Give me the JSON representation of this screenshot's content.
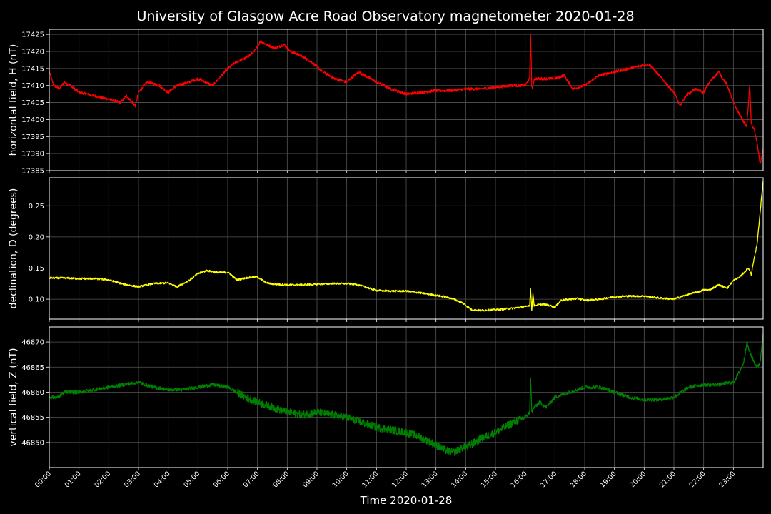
{
  "chart_data": {
    "type": "line",
    "title": "University of Glasgow Acre Road Observatory magnetometer 2020-01-28",
    "xlabel": "Time 2020-01-28",
    "x_ticks": [
      "00:00",
      "01:00",
      "02:00",
      "03:00",
      "04:00",
      "05:00",
      "06:00",
      "07:00",
      "08:00",
      "09:00",
      "10:00",
      "11:00",
      "12:00",
      "13:00",
      "14:00",
      "15:00",
      "16:00",
      "17:00",
      "18:00",
      "19:00",
      "20:00",
      "21:00",
      "22:00",
      "23:00"
    ],
    "xlim_hours": [
      0,
      24
    ],
    "grid": true,
    "background": "#000000",
    "panels": [
      {
        "name": "horizontal",
        "ylabel": "horizontal field, H (nT)",
        "color": "#ff0000",
        "ylim": [
          17385,
          17426.5
        ],
        "yticks": [
          17385,
          17390,
          17395,
          17400,
          17405,
          17410,
          17415,
          17420,
          17425
        ],
        "ytick_labels": [
          "17385",
          "17390",
          "17395",
          "17400",
          "17405",
          "17410",
          "17415",
          "17420",
          "17425"
        ],
        "noise": 0.4,
        "x": [
          0,
          0.15,
          0.35,
          0.5,
          0.7,
          1.0,
          1.5,
          2.0,
          2.4,
          2.6,
          2.9,
          3.0,
          3.3,
          3.7,
          4.0,
          4.3,
          4.7,
          5.0,
          5.5,
          6.0,
          6.3,
          6.6,
          6.9,
          7.1,
          7.3,
          7.6,
          7.9,
          8.1,
          8.4,
          8.8,
          9.2,
          9.6,
          10.0,
          10.4,
          10.6,
          11.0,
          11.5,
          12.0,
          12.5,
          13.0,
          13.5,
          14.0,
          14.5,
          15.0,
          15.5,
          16.0,
          16.15,
          16.18,
          16.22,
          16.25,
          16.3,
          16.5,
          17.0,
          17.3,
          17.6,
          18.0,
          18.5,
          19.0,
          19.5,
          20.0,
          20.2,
          20.6,
          20.9,
          21.0,
          21.2,
          21.4,
          21.7,
          22.0,
          22.2,
          22.5,
          22.8,
          23.0,
          23.3,
          23.45,
          23.55,
          23.6,
          23.7,
          23.8,
          23.9,
          24.0
        ],
        "values": [
          17414,
          17410,
          17409,
          17411,
          17410,
          17408,
          17407,
          17406,
          17405,
          17407,
          17404,
          17408,
          17411,
          17410,
          17408,
          17410,
          17411,
          17412,
          17410,
          17415,
          17417,
          17418,
          17420,
          17423,
          17422,
          17421,
          17422,
          17420,
          17419,
          17417,
          17414,
          17412,
          17411,
          17414,
          17413,
          17411,
          17409,
          17407.5,
          17408,
          17408.5,
          17408.5,
          17409,
          17409,
          17409.5,
          17410,
          17410,
          17412,
          17425,
          17410,
          17409,
          17412,
          17412,
          17412,
          17413,
          17409,
          17410,
          17413,
          17414,
          17415,
          17416,
          17416,
          17412,
          17409,
          17408,
          17404,
          17407,
          17409,
          17408,
          17411,
          17414,
          17410,
          17405,
          17400,
          17398,
          17410,
          17399,
          17397,
          17393,
          17387,
          17391
        ]
      },
      {
        "name": "declination",
        "ylabel": "declination, D (degrees)",
        "color": "#ffff00",
        "ylim": [
          0.068,
          0.295
        ],
        "yticks": [
          0.1,
          0.15,
          0.2,
          0.25
        ],
        "ytick_labels": [
          "0.10",
          "0.15",
          "0.20",
          "0.25"
        ],
        "noise": 0.0015,
        "x": [
          0,
          0.5,
          1.0,
          1.5,
          2.0,
          2.5,
          3.0,
          3.5,
          4.0,
          4.3,
          4.7,
          5.0,
          5.3,
          5.6,
          6.0,
          6.1,
          6.3,
          6.6,
          7.0,
          7.3,
          7.6,
          8.0,
          8.5,
          9.0,
          9.5,
          10.0,
          10.3,
          10.6,
          11.0,
          11.5,
          12.0,
          12.5,
          13.0,
          13.3,
          13.6,
          13.9,
          14.2,
          14.5,
          15.0,
          15.5,
          16.0,
          16.15,
          16.18,
          16.22,
          16.26,
          16.3,
          16.6,
          16.9,
          17.0,
          17.2,
          17.5,
          17.8,
          18.0,
          18.5,
          19.0,
          19.5,
          20.0,
          20.5,
          21.0,
          21.5,
          21.9,
          22.0,
          22.2,
          22.5,
          22.8,
          23.0,
          23.2,
          23.4,
          23.5,
          23.6,
          23.7,
          23.8,
          23.9,
          24.0
        ],
        "values": [
          0.134,
          0.134,
          0.133,
          0.133,
          0.131,
          0.124,
          0.12,
          0.125,
          0.126,
          0.12,
          0.13,
          0.141,
          0.146,
          0.143,
          0.143,
          0.14,
          0.131,
          0.134,
          0.136,
          0.126,
          0.124,
          0.123,
          0.123,
          0.124,
          0.125,
          0.125,
          0.124,
          0.12,
          0.114,
          0.113,
          0.113,
          0.11,
          0.106,
          0.104,
          0.1,
          0.094,
          0.083,
          0.082,
          0.083,
          0.085,
          0.088,
          0.09,
          0.117,
          0.082,
          0.11,
          0.09,
          0.092,
          0.089,
          0.087,
          0.098,
          0.1,
          0.101,
          0.098,
          0.1,
          0.104,
          0.105,
          0.105,
          0.102,
          0.1,
          0.108,
          0.113,
          0.115,
          0.115,
          0.123,
          0.118,
          0.13,
          0.135,
          0.145,
          0.15,
          0.14,
          0.165,
          0.19,
          0.24,
          0.29
        ]
      },
      {
        "name": "vertical",
        "ylabel": "vertical field, Z (nT)",
        "color": "#008000",
        "ylim": [
          46845,
          46873
        ],
        "yticks": [
          46850,
          46855,
          46860,
          46865,
          46870
        ],
        "ytick_labels": [
          "46850",
          "46855",
          "46860",
          "46865",
          "46870"
        ],
        "noise": 0.35,
        "x": [
          0,
          0.3,
          0.5,
          1.0,
          1.5,
          2.0,
          2.5,
          3.0,
          3.5,
          4.0,
          4.5,
          5.0,
          5.5,
          6.0,
          6.3,
          6.6,
          7.0,
          7.5,
          8.0,
          8.5,
          9.0,
          9.5,
          10.0,
          10.5,
          11.0,
          11.5,
          12.0,
          12.5,
          13.0,
          13.3,
          13.6,
          13.9,
          14.0,
          14.3,
          14.6,
          15.0,
          15.3,
          15.6,
          16.0,
          16.15,
          16.18,
          16.22,
          16.3,
          16.5,
          16.7,
          17.0,
          17.5,
          18.0,
          18.5,
          19.0,
          19.5,
          20.0,
          20.5,
          21.0,
          21.5,
          22.0,
          22.5,
          23.0,
          23.2,
          23.35,
          23.45,
          23.55,
          23.7,
          23.8,
          23.9,
          24.0
        ],
        "values": [
          46859,
          46859,
          46860,
          46860,
          46860.5,
          46861,
          46861.5,
          46862,
          46861,
          46860.5,
          46860.5,
          46861,
          46861.5,
          46861,
          46860,
          46859,
          46858,
          46857,
          46856,
          46855.5,
          46856,
          46855.5,
          46855,
          46854,
          46853,
          46852.5,
          46852,
          46851,
          46849.5,
          46848.5,
          46848,
          46849,
          46849,
          46850,
          46851,
          46852,
          46853,
          46854,
          46855,
          46856,
          46863,
          46856,
          46857,
          46858,
          46857,
          46859,
          46860,
          46861,
          46861,
          46860,
          46859,
          46858.5,
          46858.5,
          46859,
          46861,
          46861.5,
          46861.5,
          46862,
          46864,
          46866,
          46870,
          46868,
          46866,
          46865,
          46866,
          46872
        ]
      }
    ]
  }
}
